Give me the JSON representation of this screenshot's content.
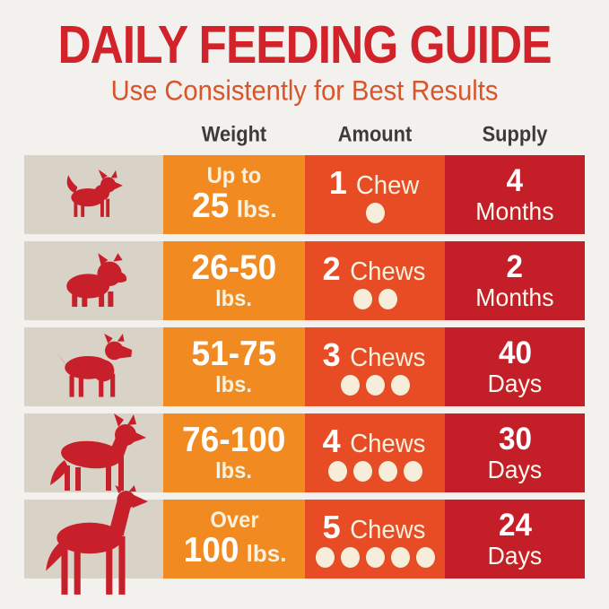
{
  "header": {
    "title": "DAILY FEEDING GUIDE",
    "subtitle": "Use Consistently for Best Results"
  },
  "columns": {
    "weight": "Weight",
    "amount": "Amount",
    "supply": "Supply"
  },
  "rows": [
    {
      "dog": "chihuahua",
      "weight": {
        "pre": "Up to",
        "value": "25",
        "unit": "lbs."
      },
      "amount": {
        "value": "1",
        "label": "Chew",
        "chews": 1
      },
      "supply": {
        "value": "4",
        "unit": "Months"
      }
    },
    {
      "dog": "french-bulldog",
      "weight": {
        "value": "26-50",
        "unit": "lbs."
      },
      "amount": {
        "value": "2",
        "label": "Chews",
        "chews": 2
      },
      "supply": {
        "value": "2",
        "unit": "Months"
      }
    },
    {
      "dog": "boxer",
      "weight": {
        "value": "51-75",
        "unit": "lbs."
      },
      "amount": {
        "value": "3",
        "label": "Chews",
        "chews": 3
      },
      "supply": {
        "value": "40",
        "unit": "Days"
      }
    },
    {
      "dog": "german-shepherd",
      "weight": {
        "value": "76-100",
        "unit": "lbs."
      },
      "amount": {
        "value": "4",
        "label": "Chews",
        "chews": 4
      },
      "supply": {
        "value": "30",
        "unit": "Days"
      }
    },
    {
      "dog": "great-dane",
      "weight": {
        "pre": "Over",
        "value": "100",
        "unit": "lbs."
      },
      "amount": {
        "value": "5",
        "label": "Chews",
        "chews": 5
      },
      "supply": {
        "value": "24",
        "unit": "Days"
      }
    }
  ],
  "colors": {
    "page_bg": "#f2f1ed",
    "title_red": "#d2232a",
    "subtitle_orange": "#d8552c",
    "header_text": "#3d3b38",
    "dog_cell_bg": "#d9d2c7",
    "weight_bg": "#f18a21",
    "amount_bg": "#e84c25",
    "supply_bg": "#c41f29",
    "dog_silhouette": "#c7202a",
    "cream_text": "#f8f1dd",
    "chew_dot": "#f6eeda"
  }
}
